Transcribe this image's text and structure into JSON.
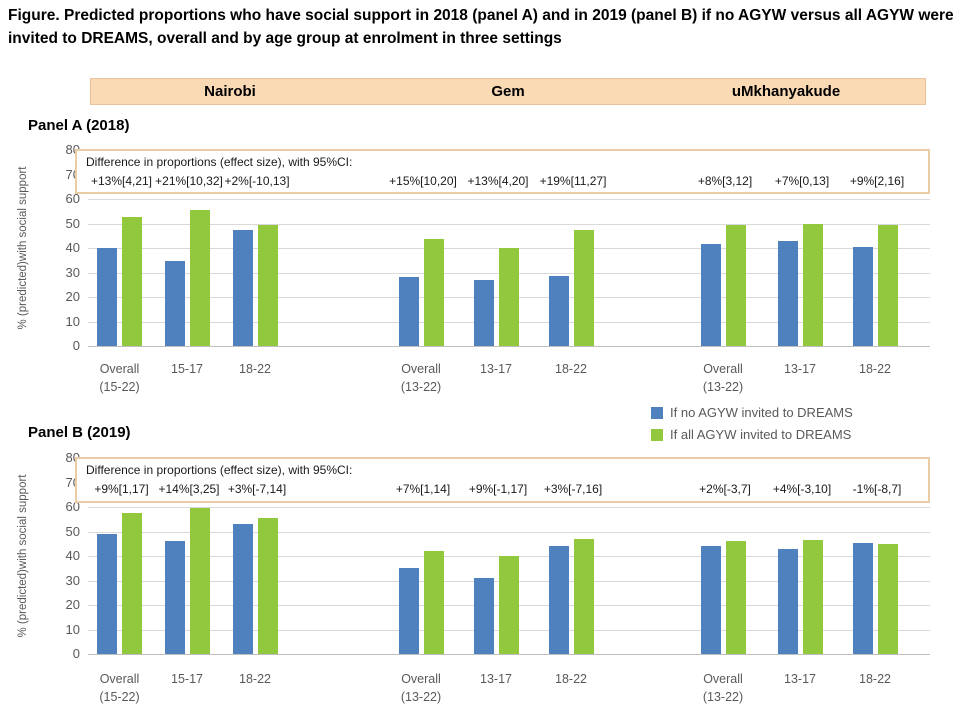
{
  "title": "Figure. Predicted proportions who have social support in 2018 (panel A) and in 2019 (panel B) if no AGYW versus all AGYW were invited to DREAMS, overall and by age group at enrolment in three settings",
  "settings_header": [
    "Nairobi",
    "Gem",
    "uMkhanyakude"
  ],
  "ylabel": "% (predicted)with social support",
  "effect_box_title": "Difference in proportions (effect size), with 95%CI:",
  "legend": [
    {
      "label": "If no AGYW invited to DREAMS",
      "color": "#4E81BD"
    },
    {
      "label": "If all AGYW invited to DREAMS",
      "color": "#92C83E"
    }
  ],
  "colors": {
    "bar_blue": "#4E81BD",
    "bar_green": "#92C83E",
    "header_band_bg": "#FADAB5",
    "header_band_border": "#E8C49C",
    "effect_box_border": "#EBCDA5",
    "gridline": "#D9D9D9",
    "axis_line": "#BFBFBF",
    "axis_text": "#595959"
  },
  "chart_data": [
    {
      "type": "bar",
      "panel_label": "Panel A (2018)",
      "ylabel": "% (predicted)with social support",
      "ylim": [
        0,
        80
      ],
      "ytick_step": 10,
      "grid": true,
      "series_names": [
        "If no AGYW invited to DREAMS",
        "If all AGYW invited to DREAMS"
      ],
      "groups": [
        {
          "setting": "Nairobi",
          "categories": [
            "Overall\n(15-22)",
            "15-17",
            "18-22"
          ],
          "no_agyw": [
            40,
            34.5,
            47.5
          ],
          "all_agyw": [
            52.5,
            55.5,
            49.5
          ],
          "effects": [
            "+13%[4,21]",
            "+21%[10,32]",
            "+2%[-10,13]"
          ]
        },
        {
          "setting": "Gem",
          "categories": [
            "Overall\n(13-22)",
            "13-17",
            "18-22"
          ],
          "no_agyw": [
            28,
            27,
            28.5
          ],
          "all_agyw": [
            43.5,
            40,
            47.5
          ],
          "effects": [
            "+15%[10,20]",
            "+13%[4,20]",
            "+19%[11,27]"
          ]
        },
        {
          "setting": "uMkhanyakude",
          "categories": [
            "Overall\n(13-22)",
            "13-17",
            "18-22"
          ],
          "no_agyw": [
            41.5,
            43,
            40.5
          ],
          "all_agyw": [
            49.5,
            50,
            49.5
          ],
          "effects": [
            "+8%[3,12]",
            "+7%[0,13]",
            "+9%[2,16]"
          ]
        }
      ]
    },
    {
      "type": "bar",
      "panel_label": "Panel B (2019)",
      "ylabel": "% (predicted)with social support",
      "ylim": [
        0,
        80
      ],
      "ytick_step": 10,
      "grid": true,
      "series_names": [
        "If no AGYW invited to DREAMS",
        "If all AGYW invited to DREAMS"
      ],
      "groups": [
        {
          "setting": "Nairobi",
          "categories": [
            "Overall\n(15-22)",
            "15-17",
            "18-22"
          ],
          "no_agyw": [
            49,
            46,
            53
          ],
          "all_agyw": [
            57.5,
            59.5,
            55.5
          ],
          "effects": [
            "+9%[1,17]",
            "+14%[3,25]",
            "+3%[-7,14]"
          ]
        },
        {
          "setting": "Gem",
          "categories": [
            "Overall\n(13-22)",
            "13-17",
            "18-22"
          ],
          "no_agyw": [
            35,
            31,
            44
          ],
          "all_agyw": [
            42,
            40,
            47
          ],
          "effects": [
            "+7%[1,14]",
            "+9%[-1,17]",
            "+3%[-7,16]"
          ]
        },
        {
          "setting": "uMkhanyakude",
          "categories": [
            "Overall\n(13-22)",
            "13-17",
            "18-22"
          ],
          "no_agyw": [
            44,
            43,
            45.5
          ],
          "all_agyw": [
            46,
            46.5,
            45
          ],
          "effects": [
            "+2%[-3,7]",
            "+4%[-3,10]",
            "-1%[-8,7]"
          ]
        }
      ]
    }
  ]
}
